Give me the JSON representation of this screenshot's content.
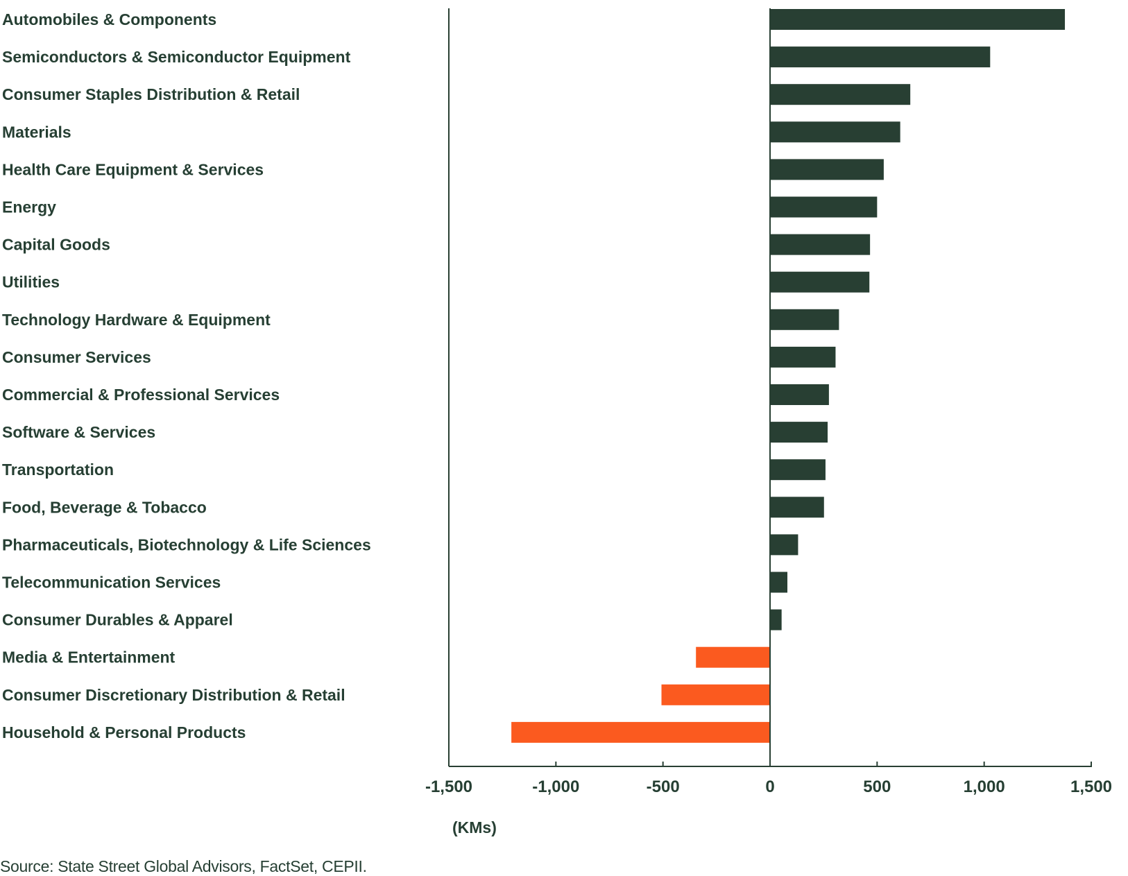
{
  "chart_data": {
    "type": "bar",
    "orientation": "horizontal",
    "categories": [
      "Automobiles & Components",
      "Semiconductors & Semiconductor Equipment",
      "Consumer Staples Distribution & Retail",
      "Materials",
      "Health Care Equipment & Services",
      "Energy",
      "Capital Goods",
      "Utilities",
      "Technology Hardware & Equipment",
      "Consumer Services",
      "Commercial  & Professional Services",
      "Software & Services",
      "Transportation",
      "Food, Beverage & Tobacco",
      "Pharmaceuticals, Biotechnology & Life Sciences",
      "Telecommunication Services",
      "Consumer Durables & Apparel",
      "Media & Entertainment",
      "Consumer Discretionary Distribution & Retail",
      "Household & Personal Products"
    ],
    "values": [
      1377,
      1028,
      655,
      608,
      531,
      500,
      467,
      464,
      322,
      306,
      275,
      269,
      259,
      252,
      131,
      81,
      54,
      -346,
      -507,
      -1208
    ],
    "xlabel": "(KMs)",
    "xlim": [
      -1500,
      1500
    ],
    "xticks": [
      -1500,
      -1000,
      -500,
      0,
      500,
      1000,
      1500
    ],
    "xtick_labels": [
      "-1,500",
      "-1,000",
      "-500",
      "0",
      "500",
      "1,000",
      "1,500"
    ],
    "grid": false,
    "colors": {
      "positive": "#283f33",
      "negative": "#fb5a1f",
      "axis": "#283f33",
      "text": "#263f33"
    }
  },
  "source": "Source: State Street Global Advisors, FactSet, CEPII."
}
